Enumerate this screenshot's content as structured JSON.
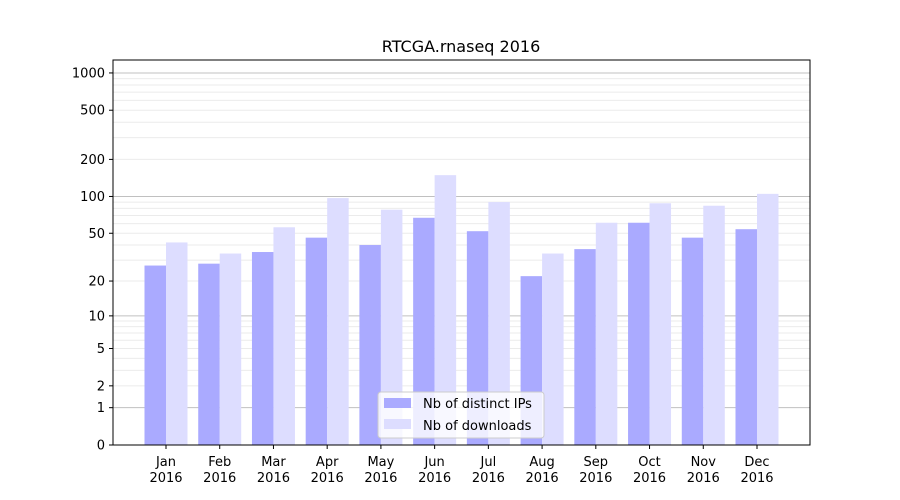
{
  "chart_data": {
    "type": "bar",
    "title": "RTCGA.rnaseq 2016",
    "xlabel": "",
    "ylabel": "",
    "yscale": "symlog (log10(1+y))",
    "ylim": [
      0,
      1200
    ],
    "yticks": [
      0,
      1,
      2,
      5,
      10,
      20,
      50,
      100,
      200,
      500,
      1000
    ],
    "categories": [
      "Jan\n2016",
      "Feb\n2016",
      "Mar\n2016",
      "Apr\n2016",
      "May\n2016",
      "Jun\n2016",
      "Jul\n2016",
      "Aug\n2016",
      "Sep\n2016",
      "Oct\n2016",
      "Nov\n2016",
      "Dec\n2016"
    ],
    "series": [
      {
        "name": "Nb of distinct IPs",
        "color": "#aaaaff",
        "values": [
          27,
          28,
          35,
          46,
          40,
          67,
          52,
          22,
          37,
          61,
          46,
          54
        ]
      },
      {
        "name": "Nb of downloads",
        "color": "#ddddff",
        "values": [
          42,
          34,
          56,
          97,
          78,
          149,
          90,
          34,
          61,
          88,
          84,
          105
        ]
      }
    ],
    "grid": true,
    "legend": "bottom-center"
  }
}
